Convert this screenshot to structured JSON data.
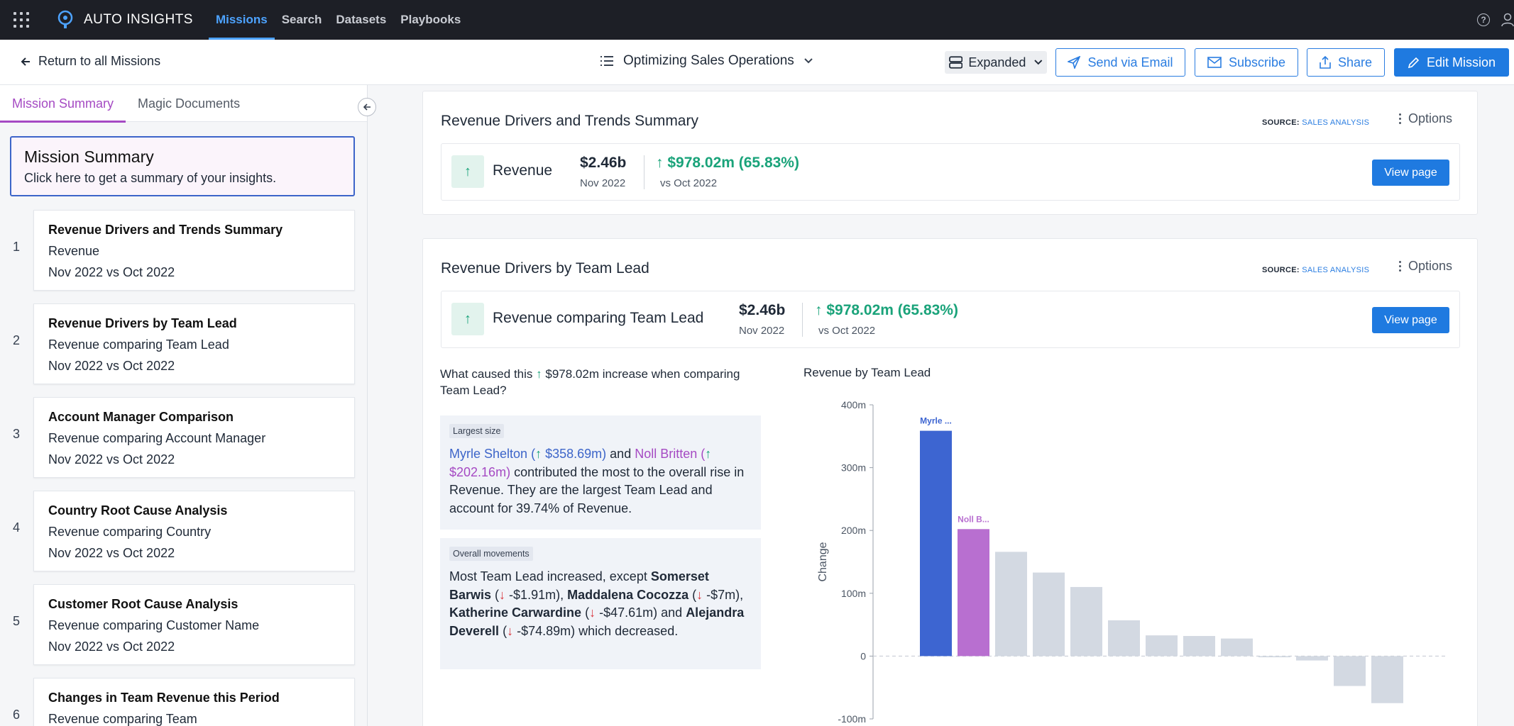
{
  "nav": {
    "brand": "AUTO INSIGHTS",
    "links": [
      "Missions",
      "Search",
      "Datasets",
      "Playbooks"
    ],
    "active": "Missions",
    "help_icon": "question-circle-icon",
    "user_icon": "user-icon"
  },
  "toolbar": {
    "back_label": "Return to all Missions",
    "mission_name": "Optimizing Sales Operations",
    "view_mode": "Expanded",
    "send_email": "Send via Email",
    "subscribe": "Subscribe",
    "share": "Share",
    "edit": "Edit Mission"
  },
  "sidebar": {
    "tabs": [
      "Mission Summary",
      "Magic Documents"
    ],
    "summary_title": "Mission Summary",
    "summary_sub": "Click here to get a summary of your insights.",
    "items": [
      {
        "num": "1",
        "title": "Revenue Drivers and Trends Summary",
        "line1": "Revenue",
        "line2": "Nov 2022 vs Oct 2022"
      },
      {
        "num": "2",
        "title": "Revenue Drivers by Team Lead",
        "line1": "Revenue comparing Team Lead",
        "line2": "Nov 2022 vs Oct 2022"
      },
      {
        "num": "3",
        "title": "Account Manager Comparison",
        "line1": "Revenue comparing Account Manager",
        "line2": "Nov 2022 vs Oct 2022"
      },
      {
        "num": "4",
        "title": "Country Root Cause Analysis",
        "line1": "Revenue comparing Country",
        "line2": "Nov 2022 vs Oct 2022"
      },
      {
        "num": "5",
        "title": "Customer Root Cause Analysis",
        "line1": "Revenue comparing Customer Name",
        "line2": "Nov 2022 vs Oct 2022"
      },
      {
        "num": "6",
        "title": "Changes in Team Revenue this Period",
        "line1": "Revenue comparing Team",
        "line2": ""
      }
    ]
  },
  "panels": [
    {
      "title": "Revenue Drivers and Trends Summary",
      "source_label": "SOURCE:",
      "source_value": "SALES ANALYSIS",
      "options": "Options",
      "metric": "Revenue",
      "value": "$2.46b",
      "period": "Nov 2022",
      "change": "$978.02m (65.83%)",
      "compare": "vs Oct 2022",
      "view": "View page"
    },
    {
      "title": "Revenue Drivers by Team Lead",
      "source_label": "SOURCE:",
      "source_value": "SALES ANALYSIS",
      "options": "Options",
      "metric": "Revenue comparing Team Lead",
      "value": "$2.46b",
      "period": "Nov 2022",
      "change": "$978.02m (65.83%)",
      "compare": "vs Oct 2022",
      "view": "View page"
    }
  ],
  "insight": {
    "question_pre": "What caused this",
    "question_amount": "$978.02m",
    "question_post": "increase when comparing Team Lead?",
    "box1": {
      "tag": "Largest size",
      "name1": "Myrle Shelton",
      "val1": "$358.69m",
      "and": "and",
      "name2": "Noll Britten",
      "val2": "$202.16m",
      "rest": "contributed the most to the overall rise in Revenue. They are the largest Team Lead and account for 39.74% of Revenue."
    },
    "box2": {
      "tag": "Overall movements",
      "pre": "Most Team Lead increased, except",
      "n1": "Somerset Barwis",
      "v1": "-$1.91m",
      "n2": "Maddalena Cocozza",
      "v2": "-$7m",
      "n3": "Katherine Carwardine",
      "v3": "-$47.61m",
      "and": "and",
      "n4": "Alejandra Deverell",
      "v4": "-$74.89m",
      "post": "which decreased."
    }
  },
  "chart_data": {
    "type": "bar",
    "title": "Revenue by Team Lead",
    "ylabel": "Change",
    "ylim": [
      -100,
      400
    ],
    "yticks": [
      "400m",
      "300m",
      "200m",
      "100m",
      "0",
      "-100m"
    ],
    "ytick_values": [
      400,
      300,
      200,
      100,
      0,
      -100
    ],
    "categories": [
      "Myrle ...",
      "Noll B...",
      "",
      "",
      "",
      "",
      "",
      "",
      "",
      "",
      "",
      "",
      ""
    ],
    "values": [
      358.69,
      202.16,
      166,
      133,
      110,
      57,
      33,
      32,
      28,
      -1.91,
      -7,
      -47.61,
      -74.89
    ],
    "colors": [
      "#3d65d1",
      "#b86fd0",
      "#d3d9e2",
      "#d3d9e2",
      "#d3d9e2",
      "#d3d9e2",
      "#d3d9e2",
      "#d3d9e2",
      "#d3d9e2",
      "#d3d9e2",
      "#d3d9e2",
      "#d3d9e2",
      "#d3d9e2"
    ],
    "grid": false
  }
}
